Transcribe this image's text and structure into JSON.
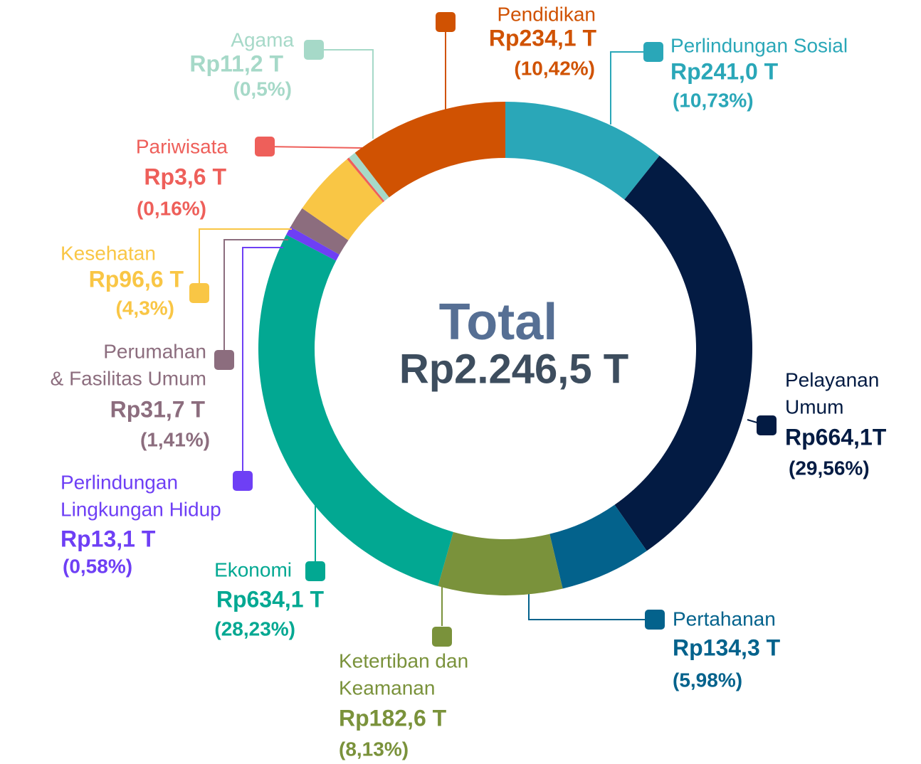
{
  "chart_data": {
    "type": "donut",
    "center_label": "Total",
    "total": 2246.5,
    "total_label": "Rp2.246,5 T",
    "labels": [
      [
        "Perlindungan Sosial"
      ],
      [
        "Pelayanan",
        "Umum"
      ],
      [
        "Pertahanan"
      ],
      [
        "Ketertiban dan",
        "Keamanan"
      ],
      [
        "Ekonomi"
      ],
      [
        "Perlindungan",
        "Lingkungan Hidup"
      ],
      [
        "Perumahan",
        "& Fasilitas Umum"
      ],
      [
        "Kesehatan"
      ],
      [
        "Pariwisata"
      ],
      [
        "Agama"
      ],
      [
        "Pendidikan"
      ]
    ],
    "values": [
      241.0,
      664.1,
      134.3,
      182.6,
      634.1,
      13.1,
      31.7,
      96.6,
      3.6,
      11.2,
      234.1
    ],
    "value_labels": [
      "Rp241,0 T",
      "Rp664,1T",
      "Rp134,3  T",
      "Rp182,6 T",
      "Rp634,1 T",
      "Rp13,1 T",
      "Rp31,7 T",
      "Rp96,6 T",
      "Rp3,6 T",
      "Rp11,2 T",
      "Rp234,1 T"
    ],
    "percents": [
      10.73,
      29.56,
      5.98,
      8.13,
      28.23,
      0.58,
      1.41,
      4.3,
      0.16,
      0.5,
      10.42
    ],
    "percent_labels": [
      "(10,73%)",
      "(29,56%)",
      "(5,98%)",
      "(8,13%)",
      "(28,23%)",
      "(0,58%)",
      "(1,41%)",
      "(4,3%)",
      "(0,16%)",
      "(0,5%)",
      "(10,42%)"
    ],
    "colors": [
      "#2aa7b8",
      "#031b43",
      "#03628c",
      "#7a923b",
      "#02a892",
      "#6e3ff5",
      "#8c6d7e",
      "#f9c645",
      "#ee5f5a",
      "#a6d9c8",
      "#d05202"
    ]
  }
}
